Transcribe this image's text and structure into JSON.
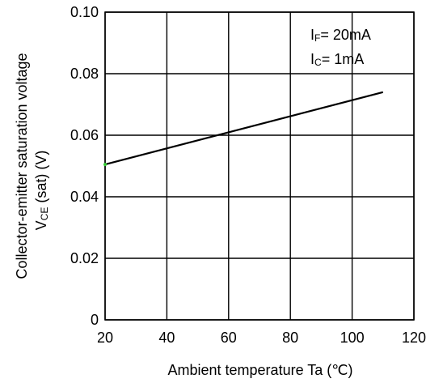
{
  "chart_data": {
    "type": "line",
    "title": "",
    "xlabel": "Ambient temperature Ta (℃)",
    "ylabel_line1": "Collector-emitter saturation voltage",
    "ylabel_line2_main": "V",
    "ylabel_line2_sub": "CE",
    "ylabel_line2_rest": " (sat) (V)",
    "xlim": [
      20,
      120
    ],
    "ylim": [
      0,
      0.1
    ],
    "x_ticks": [
      "20",
      "40",
      "60",
      "80",
      "100",
      "120"
    ],
    "y_ticks": [
      "0",
      "0.02",
      "0.04",
      "0.06",
      "0.08",
      "0.10"
    ],
    "grid": true,
    "annotations": [
      {
        "main": "I",
        "sub": "F",
        "rest": "= 20mA"
      },
      {
        "main": "I",
        "sub": "C",
        "rest": "= 1mA"
      }
    ],
    "series": [
      {
        "x": [
          20,
          110
        ],
        "y": [
          0.0505,
          0.074
        ]
      }
    ],
    "colors": {
      "line": "#000000",
      "grid": "#000000",
      "start_marker": "#33cc33"
    }
  }
}
